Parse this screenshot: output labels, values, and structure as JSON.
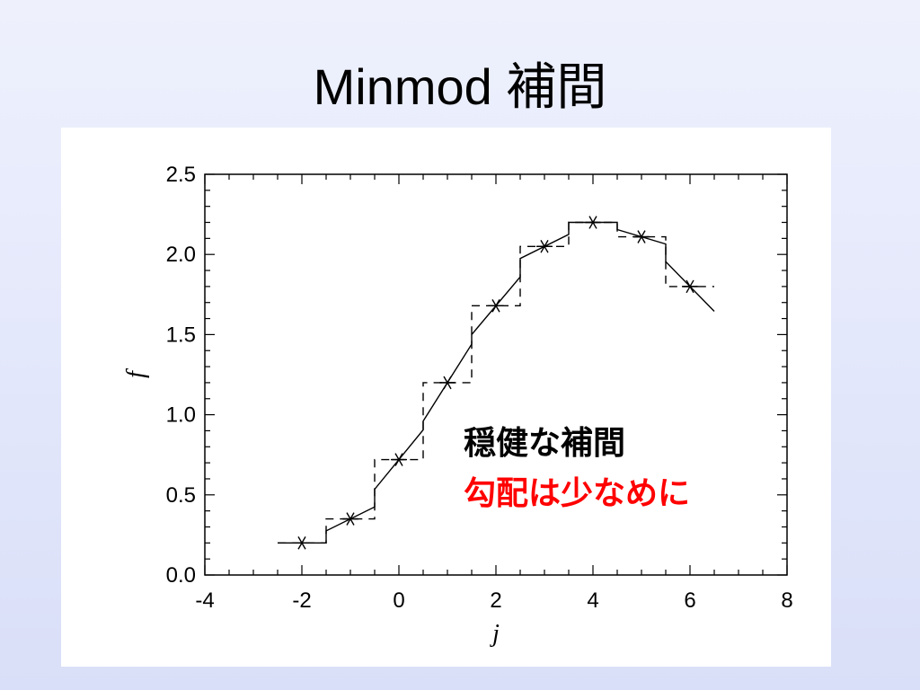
{
  "slide": {
    "title": "Minmod 補間"
  },
  "annotations": {
    "line1": "穏健な補間",
    "line2": "勾配は少なめに",
    "line2_color": "#ff0000"
  },
  "chart_data": {
    "type": "line",
    "title": "",
    "xlabel": "j",
    "ylabel": "f",
    "xlim": [
      -4,
      8
    ],
    "ylim": [
      0.0,
      2.5
    ],
    "xticks": [
      -4,
      -2,
      0,
      2,
      4,
      6,
      8
    ],
    "xtick_labels": [
      "-4",
      "-2",
      "0",
      "2",
      "4",
      "6",
      "8"
    ],
    "yticks": [
      0.0,
      0.5,
      1.0,
      1.5,
      2.0,
      2.5
    ],
    "ytick_labels": [
      "0.0",
      "0.5",
      "1.0",
      "1.5",
      "2.0",
      "2.5"
    ],
    "x_minor_step": 0.5,
    "y_minor_step": 0.1,
    "grid": false,
    "legend": "none",
    "series": [
      {
        "style": "markers",
        "marker": "asterisk",
        "x": [
          -2,
          -1,
          0,
          1,
          2,
          3,
          4,
          5,
          6
        ],
        "y": [
          0.2,
          0.35,
          0.72,
          1.2,
          1.68,
          2.05,
          2.2,
          2.11,
          1.8
        ]
      },
      {
        "style": "solid",
        "x": [
          -2.5,
          -1.5,
          -1.5,
          -0.5,
          -0.5,
          0.5,
          0.5,
          1.5,
          1.5,
          2.5,
          2.5,
          3.5,
          3.5,
          4.5,
          4.5,
          5.5,
          5.5,
          6.5
        ],
        "y": [
          0.2,
          0.2,
          0.275,
          0.425,
          0.535,
          0.905,
          0.96,
          1.44,
          1.5,
          1.86,
          1.975,
          2.125,
          2.2,
          2.2,
          2.155,
          2.065,
          1.955,
          1.645
        ]
      },
      {
        "style": "dashed",
        "x": [
          -2.5,
          -1.5,
          -1.5,
          -0.5,
          -0.5,
          0.5,
          0.5,
          1.5,
          1.5,
          2.5,
          2.5,
          3.5,
          3.5,
          4.5,
          4.5,
          5.5,
          5.5,
          6.5
        ],
        "y": [
          0.2,
          0.2,
          0.35,
          0.35,
          0.72,
          0.72,
          1.2,
          1.2,
          1.68,
          1.68,
          2.05,
          2.05,
          2.2,
          2.2,
          2.11,
          2.11,
          1.8,
          1.8
        ]
      }
    ]
  }
}
